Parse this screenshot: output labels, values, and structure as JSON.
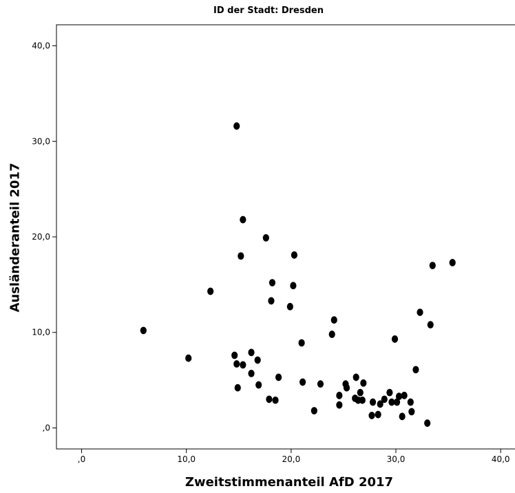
{
  "chart_data": {
    "type": "scatter",
    "title": "ID der Stadt: Dresden",
    "xlabel": "Zweitstimmenanteil AfD 2017",
    "ylabel": "Ausländeranteil 2017",
    "xlim": [
      -2.4,
      41.5
    ],
    "ylim": [
      -2.2,
      42.2
    ],
    "xticks": [
      0,
      10,
      20,
      30,
      40
    ],
    "xtick_labels": [
      ",0",
      "10,0",
      "20,0",
      "30,0",
      "40,0"
    ],
    "yticks": [
      0,
      10,
      20,
      30,
      40
    ],
    "ytick_labels": [
      ",0",
      "10,0",
      "20,0",
      "30,0",
      "40,0"
    ],
    "grid": false,
    "marker_color": "#000000",
    "points": [
      [
        5.9,
        10.2
      ],
      [
        10.2,
        7.3
      ],
      [
        12.3,
        14.3
      ],
      [
        14.8,
        31.6
      ],
      [
        15.4,
        21.8
      ],
      [
        15.2,
        18.0
      ],
      [
        17.6,
        19.9
      ],
      [
        20.3,
        18.1
      ],
      [
        18.2,
        15.2
      ],
      [
        20.2,
        14.9
      ],
      [
        18.1,
        13.3
      ],
      [
        19.9,
        12.7
      ],
      [
        14.6,
        7.6
      ],
      [
        14.8,
        6.7
      ],
      [
        15.4,
        6.6
      ],
      [
        16.2,
        7.9
      ],
      [
        16.8,
        7.1
      ],
      [
        16.2,
        5.7
      ],
      [
        16.9,
        4.5
      ],
      [
        14.9,
        4.2
      ],
      [
        17.9,
        3.0
      ],
      [
        18.5,
        2.9
      ],
      [
        18.8,
        5.3
      ],
      [
        21.0,
        8.9
      ],
      [
        21.1,
        4.8
      ],
      [
        22.2,
        1.8
      ],
      [
        22.8,
        4.6
      ],
      [
        23.9,
        9.8
      ],
      [
        24.1,
        11.3
      ],
      [
        24.6,
        3.4
      ],
      [
        24.6,
        2.4
      ],
      [
        25.2,
        4.6
      ],
      [
        25.3,
        4.2
      ],
      [
        26.2,
        5.3
      ],
      [
        26.1,
        3.1
      ],
      [
        26.4,
        2.9
      ],
      [
        26.6,
        3.7
      ],
      [
        26.8,
        2.9
      ],
      [
        26.9,
        4.7
      ],
      [
        27.8,
        2.7
      ],
      [
        27.7,
        1.3
      ],
      [
        28.3,
        1.4
      ],
      [
        28.5,
        2.5
      ],
      [
        28.9,
        3.0
      ],
      [
        29.4,
        3.7
      ],
      [
        29.6,
        2.7
      ],
      [
        29.9,
        9.3
      ],
      [
        30.1,
        2.7
      ],
      [
        30.3,
        3.3
      ],
      [
        30.6,
        1.2
      ],
      [
        30.8,
        3.4
      ],
      [
        31.4,
        2.7
      ],
      [
        31.5,
        1.7
      ],
      [
        31.9,
        6.1
      ],
      [
        32.3,
        12.1
      ],
      [
        33.0,
        0.5
      ],
      [
        33.3,
        10.8
      ],
      [
        33.5,
        17.0
      ],
      [
        35.4,
        17.3
      ]
    ]
  }
}
